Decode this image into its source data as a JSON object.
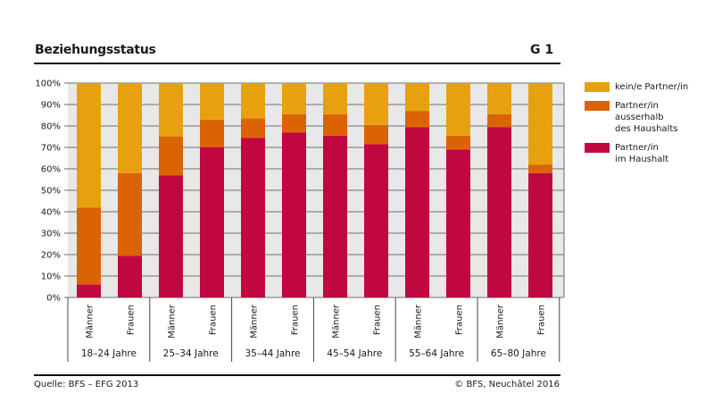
{
  "header": {
    "title": "Beziehungsstatus",
    "figure_id": "G 1"
  },
  "footer": {
    "source": "Quelle: BFS – EFG 2013",
    "copyright": "© BFS, Neuchâtel 2016"
  },
  "colors": {
    "kein_partner": "#E7A10F",
    "partner_ausserhalb": "#DC6304",
    "partner_im_haushalt": "#C0073F",
    "plot_bg": "#E8E8E8",
    "grid": "#888888"
  },
  "chart_data": {
    "type": "bar",
    "stacked": true,
    "title": "Beziehungsstatus",
    "xlabel": "",
    "ylabel": "",
    "ylim": [
      0,
      100
    ],
    "yticks": [
      "0%",
      "10%",
      "20%",
      "30%",
      "40%",
      "50%",
      "60%",
      "70%",
      "80%",
      "90%",
      "100%"
    ],
    "grid": true,
    "legend_position": "right",
    "groups": [
      "18–24 Jahre",
      "25–34 Jahre",
      "35–44 Jahre",
      "45–54 Jahre",
      "55–64 Jahre",
      "65–80 Jahre"
    ],
    "categories": [
      "Männer",
      "Frauen",
      "Männer",
      "Frauen",
      "Männer",
      "Frauen",
      "Männer",
      "Frauen",
      "Männer",
      "Frauen",
      "Männer",
      "Frauen"
    ],
    "series": [
      {
        "name": "Partner/in im Haushalt",
        "key": "partner_im_haushalt",
        "values": [
          6,
          19.5,
          57,
          70,
          74.5,
          77,
          75.5,
          71.5,
          79.5,
          69,
          79.5,
          58
        ]
      },
      {
        "name": "Partner/in ausserhalb des Haushalts",
        "key": "partner_ausserhalb",
        "values": [
          36,
          38.5,
          18,
          13,
          9,
          8.5,
          10,
          9,
          7.5,
          6.5,
          6,
          4
        ]
      },
      {
        "name": "kein/e Partner/in",
        "key": "kein_partner",
        "values": [
          58,
          42,
          25,
          17,
          16.5,
          14.5,
          14.5,
          19.5,
          13,
          24.5,
          14.5,
          38
        ]
      }
    ],
    "legend": [
      {
        "key": "kein_partner",
        "lines": [
          "kein/e Partner/in"
        ]
      },
      {
        "key": "partner_ausserhalb",
        "lines": [
          "Partner/in",
          "ausserhalb",
          "des Haushalts"
        ]
      },
      {
        "key": "partner_im_haushalt",
        "lines": [
          "Partner/in",
          "im Haushalt"
        ]
      }
    ]
  }
}
